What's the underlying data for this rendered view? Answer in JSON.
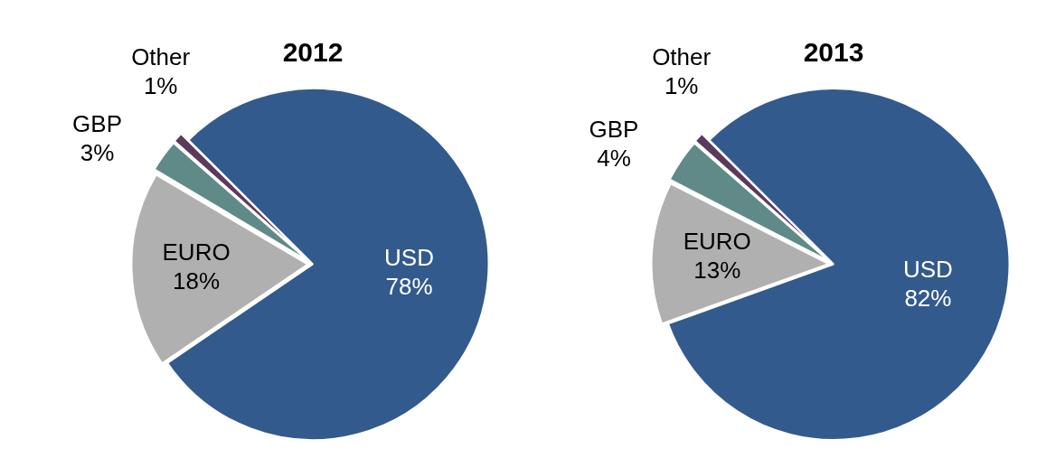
{
  "chart_data": [
    {
      "type": "pie",
      "title": "2012",
      "categories": [
        "USD",
        "EURO",
        "GBP",
        "Other"
      ],
      "values": [
        78,
        18,
        3,
        1
      ],
      "value_labels": [
        "78%",
        "18%",
        "3%",
        "1%"
      ],
      "colors": [
        "#335a8c",
        "#b0b0b0",
        "#5f8a88",
        "#5c3a5e"
      ],
      "legend": false
    },
    {
      "type": "pie",
      "title": "2013",
      "categories": [
        "USD",
        "EURO",
        "GBP",
        "Other"
      ],
      "values": [
        82,
        13,
        4,
        1
      ],
      "value_labels": [
        "82%",
        "13%",
        "4%",
        "1%"
      ],
      "colors": [
        "#335a8c",
        "#b0b0b0",
        "#5f8a88",
        "#5c3a5e"
      ],
      "legend": false
    }
  ]
}
